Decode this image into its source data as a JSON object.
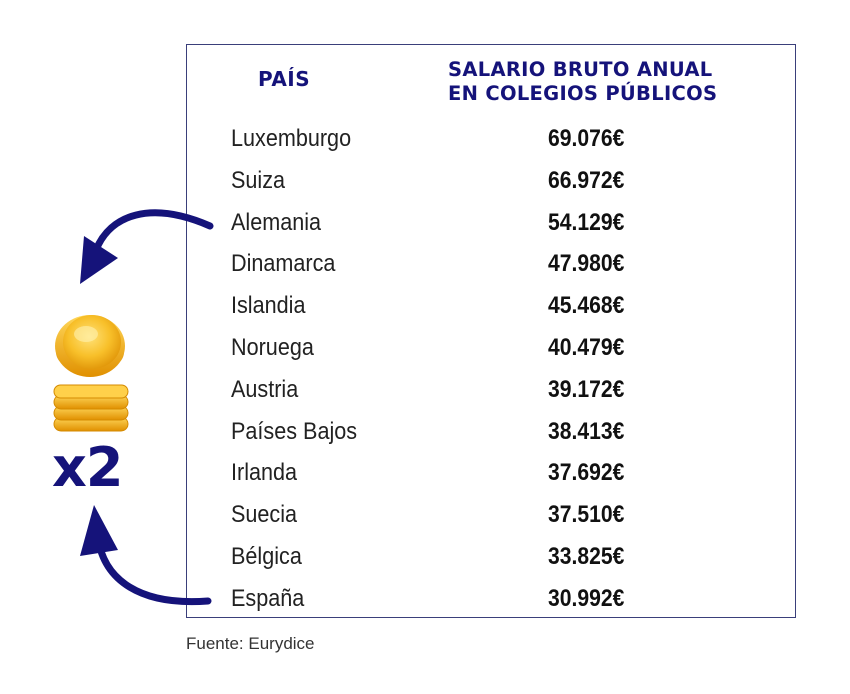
{
  "header": {
    "country_label": "PAÍS",
    "salary_label_line1": "SALARIO BRUTO ANUAL",
    "salary_label_line2": "EN COLEGIOS PÚBLICOS"
  },
  "rows": [
    {
      "country": "Luxemburgo",
      "salary": "69.076€"
    },
    {
      "country": "Suiza",
      "salary": "66.972€"
    },
    {
      "country": "Alemania",
      "salary": "54.129€"
    },
    {
      "country": "Dinamarca",
      "salary": "47.980€"
    },
    {
      "country": "Islandia",
      "salary": "45.468€"
    },
    {
      "country": "Noruega",
      "salary": "40.479€"
    },
    {
      "country": "Austria",
      "salary": "39.172€"
    },
    {
      "country": "Países Bajos",
      "salary": "38.413€"
    },
    {
      "country": "Irlanda",
      "salary": "37.692€"
    },
    {
      "country": "Suecia",
      "salary": "37.510€"
    },
    {
      "country": "Bélgica",
      "salary": "33.825€"
    },
    {
      "country": "España",
      "salary": "30.992€"
    }
  ],
  "multiplier_label": "x2",
  "source": "Fuente: Eurydice",
  "colors": {
    "accent_navy": "#15137a",
    "coin_gold": "#f5b51a"
  },
  "icons": [
    "coin-icon",
    "coin-stack-icon",
    "curved-arrow-icon"
  ]
}
